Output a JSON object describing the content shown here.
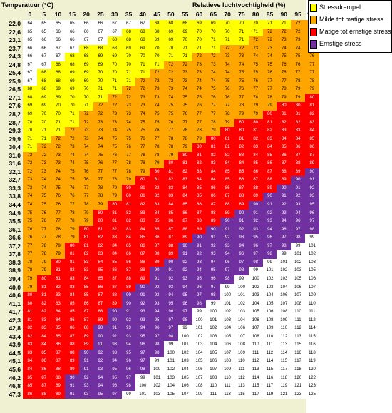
{
  "header": {
    "temperature_label": "Temperatuur (°C)",
    "humidity_label": "Relatieve luchtvochtigheid (%)"
  },
  "humidity_values": [
    "0",
    "5",
    "10",
    "15",
    "20",
    "25",
    "30",
    "35",
    "40",
    "45",
    "50",
    "55",
    "60",
    "65",
    "70",
    "75",
    "80",
    "85",
    "90",
    "95",
    "100"
  ],
  "legend": [
    {
      "label": "Stressdrempel",
      "color": "#ffff00"
    },
    {
      "label": "Milde tot matige stress",
      "color": "#ffa500"
    },
    {
      "label": "Matige tot ernstige stress",
      "color": "#ff0000"
    },
    {
      "label": "Ernstige stress",
      "color": "#7030a0"
    }
  ],
  "colors": {
    "none": "#ffffff",
    "threshold": "#ffff00",
    "mild": "#ffa500",
    "moderate": "#ff0000",
    "severe": "#7030a0"
  },
  "table": {
    "rows": [
      {
        "temp": "22,0",
        "values": [
          64,
          65,
          65,
          65,
          66,
          66,
          67,
          67,
          67,
          68,
          68,
          68,
          69,
          69,
          70,
          70,
          70,
          71,
          71,
          72,
          72
        ]
      },
      {
        "temp": "22,6",
        "values": [
          65,
          65,
          66,
          66,
          66,
          67,
          67,
          68,
          68,
          68,
          69,
          69,
          70,
          70,
          70,
          71,
          71,
          72,
          72,
          72,
          73
        ]
      },
      {
        "temp": "23,1",
        "values": [
          65,
          66,
          66,
          66,
          67,
          67,
          68,
          68,
          68,
          69,
          69,
          70,
          70,
          71,
          71,
          71,
          72,
          72,
          73,
          73,
          74
        ]
      },
      {
        "temp": "23,7",
        "values": [
          66,
          66,
          67,
          67,
          68,
          68,
          68,
          69,
          69,
          70,
          70,
          71,
          71,
          71,
          72,
          72,
          73,
          73,
          74,
          74,
          75
        ]
      },
      {
        "temp": "24,3",
        "values": [
          66,
          67,
          67,
          68,
          68,
          69,
          69,
          70,
          70,
          70,
          71,
          71,
          72,
          72,
          73,
          73,
          74,
          74,
          75,
          75,
          76
        ]
      },
      {
        "temp": "24,8",
        "values": [
          67,
          67,
          68,
          68,
          69,
          69,
          70,
          70,
          71,
          71,
          72,
          72,
          73,
          73,
          74,
          74,
          75,
          75,
          76,
          76,
          77
        ]
      },
      {
        "temp": "25,4",
        "values": [
          67,
          68,
          68,
          69,
          69,
          70,
          70,
          71,
          71,
          72,
          72,
          73,
          73,
          74,
          74,
          75,
          75,
          76,
          76,
          77,
          77
        ]
      },
      {
        "temp": "25,9",
        "values": [
          67,
          68,
          68,
          69,
          69,
          70,
          71,
          71,
          72,
          72,
          73,
          73,
          74,
          74,
          75,
          75,
          76,
          77,
          77,
          78,
          78
        ]
      },
      {
        "temp": "26,5",
        "values": [
          68,
          68,
          69,
          69,
          70,
          71,
          71,
          72,
          72,
          73,
          73,
          74,
          74,
          75,
          76,
          76,
          77,
          77,
          78,
          79,
          79
        ]
      },
      {
        "temp": "27,1",
        "values": [
          68,
          69,
          69,
          70,
          70,
          71,
          72,
          72,
          73,
          73,
          74,
          75,
          75,
          76,
          76,
          77,
          78,
          78,
          79,
          79,
          80
        ]
      },
      {
        "temp": "27,6",
        "values": [
          69,
          69,
          70,
          70,
          71,
          72,
          72,
          73,
          73,
          74,
          75,
          75,
          76,
          77,
          77,
          78,
          79,
          79,
          80,
          80,
          81
        ]
      },
      {
        "temp": "28,2",
        "values": [
          69,
          70,
          70,
          71,
          72,
          72,
          73,
          73,
          74,
          75,
          75,
          76,
          77,
          77,
          78,
          79,
          79,
          80,
          81,
          81,
          82
        ]
      },
      {
        "temp": "28,7",
        "values": [
          70,
          70,
          71,
          71,
          72,
          73,
          73,
          74,
          75,
          75,
          76,
          77,
          77,
          78,
          79,
          80,
          80,
          81,
          82,
          82,
          83
        ]
      },
      {
        "temp": "29,3",
        "values": [
          70,
          71,
          71,
          72,
          73,
          73,
          74,
          75,
          75,
          76,
          77,
          78,
          78,
          79,
          80,
          80,
          81,
          82,
          83,
          83,
          84
        ]
      },
      {
        "temp": "29,9",
        "values": [
          71,
          71,
          72,
          72,
          73,
          74,
          75,
          75,
          76,
          77,
          78,
          78,
          79,
          80,
          81,
          81,
          82,
          83,
          84,
          84,
          85
        ]
      },
      {
        "temp": "30,4",
        "values": [
          71,
          72,
          72,
          73,
          74,
          74,
          75,
          76,
          77,
          78,
          78,
          79,
          80,
          81,
          81,
          82,
          83,
          84,
          85,
          86,
          86
        ]
      },
      {
        "temp": "31,0",
        "values": [
          72,
          72,
          73,
          74,
          74,
          75,
          76,
          77,
          78,
          78,
          79,
          80,
          81,
          82,
          82,
          83,
          84,
          85,
          86,
          87,
          87
        ]
      },
      {
        "temp": "31,6",
        "values": [
          72,
          73,
          73,
          74,
          75,
          76,
          77,
          78,
          78,
          79,
          80,
          81,
          82,
          83,
          84,
          84,
          85,
          86,
          87,
          88,
          89
        ]
      },
      {
        "temp": "32,1",
        "values": [
          72,
          73,
          74,
          75,
          76,
          77,
          77,
          78,
          79,
          80,
          81,
          82,
          83,
          84,
          85,
          85,
          86,
          87,
          88,
          89,
          90
        ]
      },
      {
        "temp": "32,7",
        "values": [
          73,
          74,
          74,
          75,
          76,
          77,
          78,
          79,
          80,
          81,
          82,
          83,
          84,
          84,
          85,
          86,
          87,
          88,
          89,
          90,
          91
        ]
      },
      {
        "temp": "33,3",
        "values": [
          73,
          74,
          75,
          76,
          77,
          78,
          79,
          80,
          81,
          82,
          83,
          84,
          85,
          86,
          86,
          87,
          88,
          89,
          90,
          91,
          92
        ]
      },
      {
        "temp": "33,8",
        "values": [
          74,
          75,
          76,
          76,
          77,
          78,
          79,
          80,
          81,
          82,
          83,
          84,
          85,
          86,
          87,
          88,
          89,
          90,
          91,
          92,
          93
        ]
      },
      {
        "temp": "34,4",
        "values": [
          74,
          75,
          76,
          77,
          78,
          79,
          80,
          81,
          82,
          83,
          84,
          85,
          86,
          87,
          88,
          89,
          90,
          91,
          92,
          93,
          95
        ]
      },
      {
        "temp": "34,9",
        "values": [
          75,
          76,
          77,
          78,
          79,
          80,
          81,
          82,
          83,
          84,
          85,
          86,
          87,
          88,
          89,
          90,
          91,
          92,
          93,
          94,
          96
        ]
      },
      {
        "temp": "35,5",
        "values": [
          75,
          76,
          77,
          78,
          79,
          80,
          81,
          82,
          83,
          85,
          86,
          87,
          88,
          89,
          90,
          91,
          92,
          93,
          94,
          96,
          97
        ]
      },
      {
        "temp": "36,1",
        "values": [
          76,
          77,
          78,
          79,
          80,
          81,
          82,
          83,
          84,
          85,
          87,
          88,
          89,
          90,
          91,
          92,
          93,
          94,
          96,
          97,
          98
        ]
      },
      {
        "temp": "36,6",
        "values": [
          76,
          77,
          78,
          79,
          81,
          82,
          83,
          84,
          85,
          86,
          87,
          89,
          90,
          91,
          92,
          93,
          95,
          96,
          97,
          98,
          99
        ]
      },
      {
        "temp": "37,2",
        "values": [
          77,
          78,
          79,
          80,
          81,
          82,
          84,
          85,
          86,
          87,
          88,
          90,
          91,
          92,
          93,
          94,
          96,
          97,
          98,
          99,
          101
        ]
      },
      {
        "temp": "37,8",
        "values": [
          77,
          78,
          79,
          81,
          82,
          83,
          84,
          86,
          87,
          88,
          89,
          91,
          92,
          93,
          94,
          96,
          97,
          98,
          99,
          101,
          102
        ]
      },
      {
        "temp": "38,3",
        "values": [
          78,
          79,
          80,
          81,
          83,
          84,
          85,
          86,
          88,
          89,
          90,
          92,
          93,
          94,
          96,
          97,
          98,
          99,
          101,
          102,
          103
        ]
      },
      {
        "temp": "38,9",
        "values": [
          78,
          79,
          81,
          82,
          83,
          85,
          86,
          87,
          88,
          90,
          91,
          92,
          94,
          95,
          97,
          98,
          99,
          101,
          102,
          103,
          105
        ]
      },
      {
        "temp": "39,4",
        "values": [
          79,
          80,
          81,
          83,
          84,
          85,
          87,
          88,
          89,
          91,
          92,
          93,
          95,
          96,
          98,
          99,
          100,
          102,
          103,
          105,
          106
        ]
      },
      {
        "temp": "40,0",
        "values": [
          79,
          81,
          82,
          83,
          85,
          86,
          87,
          89,
          90,
          92,
          93,
          94,
          96,
          97,
          99,
          100,
          102,
          103,
          104,
          106,
          107
        ]
      },
      {
        "temp": "40,6",
        "values": [
          80,
          81,
          83,
          84,
          85,
          87,
          88,
          90,
          91,
          92,
          94,
          95,
          97,
          98,
          100,
          101,
          103,
          104,
          106,
          107,
          109
        ]
      },
      {
        "temp": "41,1",
        "values": [
          80,
          82,
          83,
          85,
          86,
          87,
          89,
          90,
          92,
          93,
          95,
          96,
          98,
          99,
          101,
          102,
          104,
          105,
          107,
          108,
          110
        ]
      },
      {
        "temp": "41,7",
        "values": [
          81,
          82,
          84,
          85,
          87,
          88,
          90,
          91,
          93,
          94,
          96,
          97,
          99,
          100,
          102,
          103,
          105,
          106,
          108,
          110,
          111
        ]
      },
      {
        "temp": "42,3",
        "values": [
          81,
          83,
          84,
          86,
          87,
          89,
          90,
          92,
          93,
          95,
          97,
          98,
          100,
          101,
          103,
          104,
          106,
          108,
          109,
          111,
          112
        ]
      },
      {
        "temp": "42,8",
        "values": [
          82,
          83,
          85,
          86,
          88,
          90,
          91,
          93,
          94,
          96,
          97,
          99,
          101,
          102,
          104,
          106,
          107,
          109,
          110,
          112,
          114
        ]
      },
      {
        "temp": "43,4",
        "values": [
          82,
          84,
          85,
          87,
          89,
          90,
          92,
          93,
          95,
          97,
          98,
          100,
          102,
          103,
          105,
          107,
          108,
          110,
          112,
          113,
          115
        ]
      },
      {
        "temp": "43,9",
        "values": [
          83,
          84,
          86,
          88,
          89,
          91,
          93,
          94,
          96,
          98,
          99,
          101,
          103,
          104,
          106,
          108,
          110,
          111,
          113,
          115,
          116
        ]
      },
      {
        "temp": "44,5",
        "values": [
          83,
          85,
          87,
          88,
          90,
          92,
          93,
          95,
          97,
          98,
          100,
          102,
          104,
          105,
          107,
          109,
          111,
          112,
          114,
          116,
          118
        ]
      },
      {
        "temp": "45,1",
        "values": [
          84,
          86,
          87,
          89,
          91,
          92,
          94,
          96,
          97,
          99,
          101,
          103,
          105,
          106,
          108,
          110,
          112,
          114,
          115,
          117,
          119
        ]
      },
      {
        "temp": "45,6",
        "values": [
          84,
          86,
          88,
          89,
          91,
          93,
          95,
          96,
          98,
          100,
          102,
          104,
          106,
          107,
          109,
          111,
          113,
          115,
          117,
          118,
          120
        ]
      },
      {
        "temp": "46,2",
        "values": [
          85,
          87,
          88,
          90,
          92,
          94,
          95,
          97,
          99,
          101,
          103,
          105,
          107,
          108,
          110,
          112,
          114,
          116,
          118,
          120,
          122
        ]
      },
      {
        "temp": "46,8",
        "values": [
          85,
          87,
          89,
          91,
          93,
          94,
          96,
          98,
          100,
          102,
          104,
          106,
          108,
          110,
          111,
          113,
          115,
          117,
          119,
          121,
          123
        ]
      },
      {
        "temp": "47,3",
        "values": [
          86,
          88,
          89,
          91,
          93,
          95,
          97,
          99,
          101,
          103,
          105,
          107,
          109,
          111,
          113,
          115,
          117,
          119,
          121,
          123,
          125
        ]
      }
    ]
  }
}
